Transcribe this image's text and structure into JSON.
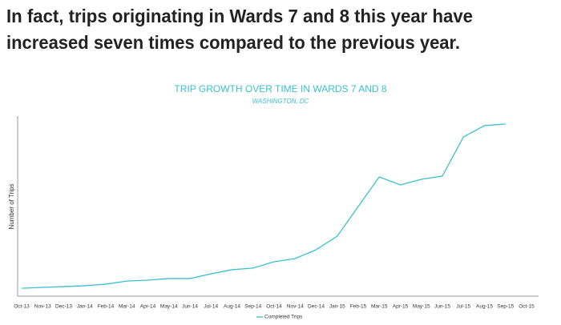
{
  "headline": [
    "In fact, trips originating in Wards 7 and 8 this year have",
    "increased seven times compared to the previous year."
  ],
  "chart_data": {
    "type": "line",
    "title": "TRIP GROWTH OVER TIME IN WARDS 7 AND 8",
    "subtitle": "WASHINGTON, DC",
    "y_label": "Number of Trips",
    "categories": [
      "Oct-13",
      "Nov-13",
      "Dec-13",
      "Jan-14",
      "Feb-14",
      "Mar-14",
      "Apr-14",
      "May-14",
      "Jun-14",
      "Jul-14",
      "Aug-14",
      "Sep-14",
      "Oct-14",
      "Nov-14",
      "Dec-14",
      "Jan-15",
      "Feb-15",
      "Mar-15",
      "Apr-15",
      "May-15",
      "Jun-15",
      "Jul-15",
      "Aug-15",
      "Sep-15",
      "Oct-15"
    ],
    "series": [
      {
        "name": "Completed Trips",
        "color": "#3bbfcf",
        "values": [
          4.4,
          4.9,
          5.3,
          5.8,
          6.7,
          8.4,
          8.9,
          9.8,
          9.8,
          12.4,
          14.7,
          15.6,
          19.1,
          20.9,
          25.8,
          33.3,
          49.8,
          66.2,
          61.8,
          64.9,
          66.7,
          88.4,
          94.7,
          95.6,
          null
        ]
      }
    ],
    "ylim": [
      0,
      100
    ],
    "legend": "bottom"
  }
}
